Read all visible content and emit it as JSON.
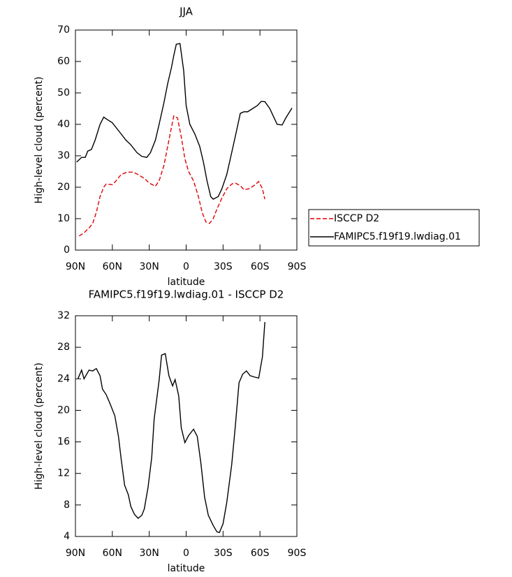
{
  "chart_data": [
    {
      "type": "line",
      "title": "JJA",
      "xlabel": "latitude",
      "ylabel": "High-level cloud (percent)",
      "xlim": [
        90,
        -90
      ],
      "xticks": [
        {
          "value": 90,
          "label": "90N"
        },
        {
          "value": 60,
          "label": "60N"
        },
        {
          "value": 30,
          "label": "30N"
        },
        0,
        {
          "value": -30,
          "label": "30S"
        },
        {
          "value": -60,
          "label": "60S"
        },
        {
          "value": -90,
          "label": "90S"
        }
      ],
      "ylim": [
        0,
        70
      ],
      "yticks": [
        0,
        10,
        20,
        30,
        40,
        50,
        60,
        70
      ],
      "legend": "outside-right",
      "series": [
        {
          "name": "ISCCP D2",
          "color": "#e00000",
          "dashed": true,
          "x": [
            87,
            83,
            79,
            76,
            73,
            70,
            67,
            65,
            60,
            57,
            53,
            48,
            43,
            39,
            34,
            30,
            25,
            22,
            18,
            15,
            12,
            10,
            7,
            4,
            1,
            -2,
            -6,
            -10,
            -13,
            -16,
            -19,
            -22,
            -25,
            -29,
            -33,
            -37,
            -40,
            -44,
            -47,
            -51,
            -55,
            -59,
            -62,
            -64
          ],
          "values": [
            4.5,
            5.5,
            7,
            8.5,
            12,
            17,
            20,
            21,
            20.8,
            22,
            24,
            24.8,
            24.8,
            24,
            22.8,
            21.3,
            20.3,
            22,
            27,
            33,
            39,
            42.7,
            42,
            36,
            29,
            25,
            22,
            17,
            12,
            9,
            8.5,
            10,
            13,
            16.5,
            19.5,
            21,
            21.3,
            20.5,
            19.2,
            19.5,
            20.5,
            21.8,
            19.5,
            16.2
          ]
        },
        {
          "name": "FAMIPC5.f19f19.lwdiag.01",
          "color": "#000000",
          "dashed": false,
          "x": [
            89,
            85,
            82,
            80,
            77,
            74,
            70,
            67,
            64,
            60,
            57,
            53,
            49,
            45,
            40,
            36,
            32,
            29,
            25,
            22,
            18,
            15,
            12,
            10,
            8,
            5,
            2,
            0,
            -3,
            -7,
            -11,
            -14,
            -17,
            -20,
            -22,
            -26,
            -29,
            -33,
            -37,
            -41,
            -44,
            -47,
            -50,
            -54,
            -58,
            -61,
            -64,
            -68,
            -71,
            -74,
            -78,
            -81,
            -86
          ],
          "values": [
            28,
            29.5,
            29.5,
            31.5,
            32,
            35,
            40,
            42.3,
            41.5,
            40.5,
            39,
            37,
            35,
            33.5,
            31,
            29.8,
            29.5,
            31,
            35,
            40,
            47,
            53,
            58,
            62,
            65.5,
            65.7,
            57,
            46,
            40,
            37,
            33,
            28,
            22,
            17,
            16.2,
            17,
            19.5,
            24,
            31,
            38,
            43.5,
            44,
            44,
            45,
            46,
            47.3,
            47.2,
            45,
            42.5,
            40,
            39.8,
            42,
            45.2
          ]
        }
      ]
    },
    {
      "type": "line",
      "title": "FAMIPC5.f19f19.lwdiag.01 - ISCCP D2",
      "xlabel": "latitude",
      "ylabel": "High-level cloud (percent)",
      "xlim": [
        90,
        -90
      ],
      "xticks": [
        {
          "value": 90,
          "label": "90N"
        },
        {
          "value": 60,
          "label": "60N"
        },
        {
          "value": 30,
          "label": "30N"
        },
        0,
        {
          "value": -30,
          "label": "30S"
        },
        {
          "value": -60,
          "label": "60S"
        },
        {
          "value": -90,
          "label": "90S"
        }
      ],
      "ylim": [
        4,
        32
      ],
      "yticks": [
        4,
        8,
        12,
        16,
        20,
        24,
        28,
        32
      ],
      "series": [
        {
          "color": "#000000",
          "dashed": false,
          "x": [
            88,
            85,
            83,
            79,
            76,
            73,
            70,
            68,
            65,
            62,
            58,
            55,
            53,
            50,
            47,
            45,
            42,
            39,
            36,
            34,
            31,
            28,
            26,
            22,
            20,
            17,
            14,
            11,
            9,
            6,
            4,
            1,
            -2,
            -6,
            -9,
            -12,
            -15,
            -18,
            -22,
            -25,
            -27,
            -30,
            -33,
            -37,
            -40,
            -43,
            -46,
            -49,
            -52,
            -56,
            -59,
            -62,
            -64
          ],
          "values": [
            24,
            25.1,
            24,
            25.1,
            25,
            25.3,
            24.4,
            22.7,
            22,
            20.9,
            19.3,
            16.7,
            14,
            10.5,
            9.3,
            7.8,
            6.8,
            6.3,
            6.7,
            7.5,
            10.2,
            14,
            18.9,
            23.8,
            27,
            27.2,
            24.4,
            23.1,
            23.9,
            21.8,
            17.8,
            15.9,
            16.8,
            17.6,
            16.7,
            13.3,
            9,
            6.7,
            5.4,
            4.6,
            4.5,
            5.6,
            8.3,
            13.1,
            18,
            23.5,
            24.6,
            25,
            24.4,
            24.2,
            24.1,
            26.8,
            31.2
          ]
        }
      ]
    }
  ]
}
